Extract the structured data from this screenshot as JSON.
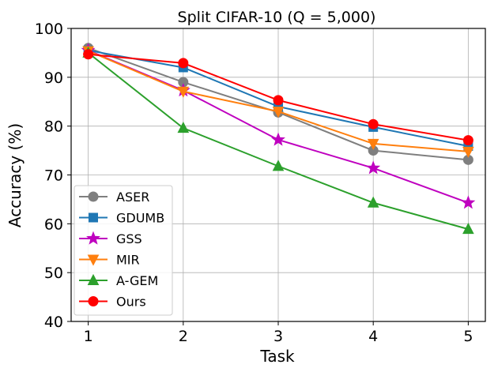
{
  "chart_data": {
    "type": "line",
    "title": "Split CIFAR-10 (Q = 5,000)",
    "xlabel": "Task",
    "ylabel": "Accuracy (%)",
    "x": [
      1,
      2,
      3,
      4,
      5
    ],
    "xticks": [
      "1",
      "2",
      "3",
      "4",
      "5"
    ],
    "ylim": [
      40,
      100
    ],
    "yticks": [
      "40",
      "50",
      "60",
      "70",
      "80",
      "90",
      "100"
    ],
    "grid": true,
    "legend_position": "bottom-left",
    "series": [
      {
        "name": "ASER",
        "color": "#7f7f7f",
        "marker": "circle",
        "values": [
          96.0,
          89.0,
          82.8,
          75.0,
          73.1
        ]
      },
      {
        "name": "GDUMB",
        "color": "#1f77b4",
        "marker": "square",
        "values": [
          95.5,
          92.0,
          84.0,
          79.8,
          75.9
        ]
      },
      {
        "name": "GSS",
        "color": "#bf00bf",
        "marker": "star",
        "values": [
          95.5,
          87.3,
          77.2,
          71.4,
          64.3
        ]
      },
      {
        "name": "MIR",
        "color": "#ff7f0e",
        "marker": "triangle-down",
        "values": [
          95.4,
          87.1,
          83.0,
          76.4,
          74.8
        ]
      },
      {
        "name": "A-GEM",
        "color": "#2ca02c",
        "marker": "triangle-up",
        "values": [
          95.0,
          79.6,
          71.8,
          64.3,
          58.9
        ]
      },
      {
        "name": "Ours",
        "color": "#ff0000",
        "marker": "circle",
        "values": [
          94.7,
          92.9,
          85.3,
          80.4,
          77.1
        ]
      }
    ]
  }
}
